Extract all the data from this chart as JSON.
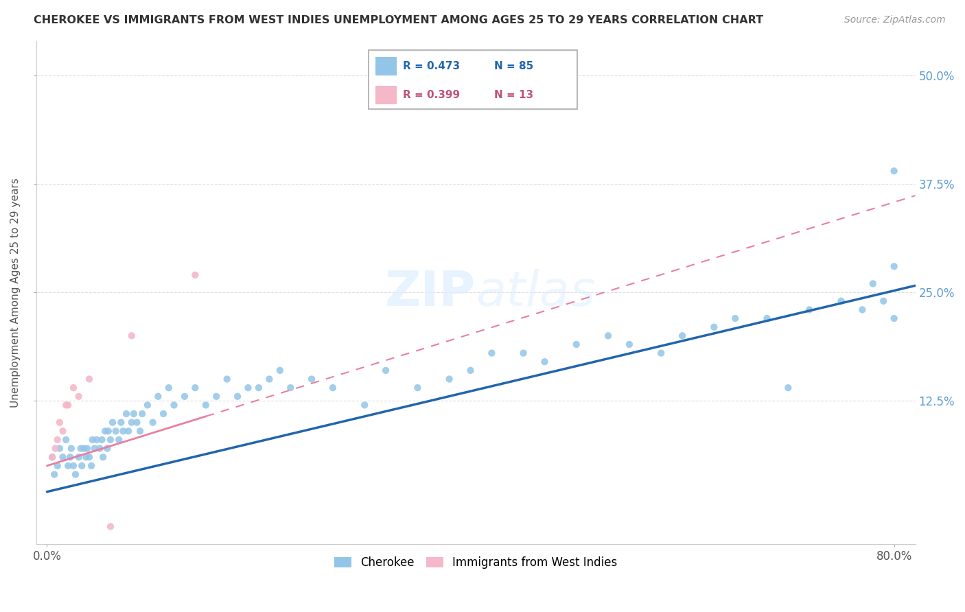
{
  "title": "CHEROKEE VS IMMIGRANTS FROM WEST INDIES UNEMPLOYMENT AMONG AGES 25 TO 29 YEARS CORRELATION CHART",
  "source": "Source: ZipAtlas.com",
  "ylabel": "Unemployment Among Ages 25 to 29 years",
  "xlim": [
    -0.01,
    0.82
  ],
  "ylim": [
    -0.04,
    0.54
  ],
  "xticks": [
    0.0,
    0.8
  ],
  "xticklabels": [
    "0.0%",
    "80.0%"
  ],
  "yticks_right": [
    0.125,
    0.25,
    0.375,
    0.5
  ],
  "yticklabels_right": [
    "12.5%",
    "25.0%",
    "37.5%",
    "50.0%"
  ],
  "cherokee_R": 0.473,
  "cherokee_N": 85,
  "westindies_R": 0.399,
  "westindies_N": 13,
  "cherokee_color": "#92C5E8",
  "westindies_color": "#F4B8C8",
  "cherokee_line_color": "#2166AC",
  "westindies_line_color": "#E87FA0",
  "background_color": "#FFFFFF",
  "grid_color": "#DDDDDD",
  "cherokee_intercept": 0.02,
  "cherokee_slope": 0.29,
  "westindies_intercept": 0.05,
  "westindies_slope": 0.38,
  "cherokee_x": [
    0.005,
    0.007,
    0.01,
    0.012,
    0.015,
    0.018,
    0.02,
    0.022,
    0.023,
    0.025,
    0.027,
    0.03,
    0.032,
    0.033,
    0.035,
    0.037,
    0.038,
    0.04,
    0.042,
    0.043,
    0.045,
    0.047,
    0.05,
    0.052,
    0.053,
    0.055,
    0.057,
    0.058,
    0.06,
    0.062,
    0.065,
    0.068,
    0.07,
    0.072,
    0.075,
    0.077,
    0.08,
    0.082,
    0.085,
    0.088,
    0.09,
    0.095,
    0.1,
    0.105,
    0.11,
    0.115,
    0.12,
    0.13,
    0.14,
    0.15,
    0.16,
    0.17,
    0.18,
    0.19,
    0.2,
    0.21,
    0.22,
    0.23,
    0.25,
    0.27,
    0.3,
    0.32,
    0.35,
    0.38,
    0.4,
    0.42,
    0.45,
    0.47,
    0.5,
    0.53,
    0.55,
    0.58,
    0.6,
    0.63,
    0.65,
    0.68,
    0.7,
    0.72,
    0.75,
    0.77,
    0.78,
    0.79,
    0.8,
    0.8,
    0.8
  ],
  "cherokee_y": [
    0.06,
    0.04,
    0.05,
    0.07,
    0.06,
    0.08,
    0.05,
    0.06,
    0.07,
    0.05,
    0.04,
    0.06,
    0.07,
    0.05,
    0.07,
    0.06,
    0.07,
    0.06,
    0.05,
    0.08,
    0.07,
    0.08,
    0.07,
    0.08,
    0.06,
    0.09,
    0.07,
    0.09,
    0.08,
    0.1,
    0.09,
    0.08,
    0.1,
    0.09,
    0.11,
    0.09,
    0.1,
    0.11,
    0.1,
    0.09,
    0.11,
    0.12,
    0.1,
    0.13,
    0.11,
    0.14,
    0.12,
    0.13,
    0.14,
    0.12,
    0.13,
    0.15,
    0.13,
    0.14,
    0.14,
    0.15,
    0.16,
    0.14,
    0.15,
    0.14,
    0.12,
    0.16,
    0.14,
    0.15,
    0.16,
    0.18,
    0.18,
    0.17,
    0.19,
    0.2,
    0.19,
    0.18,
    0.2,
    0.21,
    0.22,
    0.22,
    0.14,
    0.23,
    0.24,
    0.23,
    0.26,
    0.24,
    0.22,
    0.39,
    0.28
  ],
  "westindies_x": [
    0.005,
    0.008,
    0.01,
    0.012,
    0.015,
    0.018,
    0.02,
    0.025,
    0.03,
    0.04,
    0.06,
    0.08,
    0.14
  ],
  "westindies_y": [
    0.06,
    0.07,
    0.08,
    0.1,
    0.09,
    0.12,
    0.12,
    0.14,
    0.13,
    0.15,
    -0.02,
    0.2,
    0.27
  ]
}
